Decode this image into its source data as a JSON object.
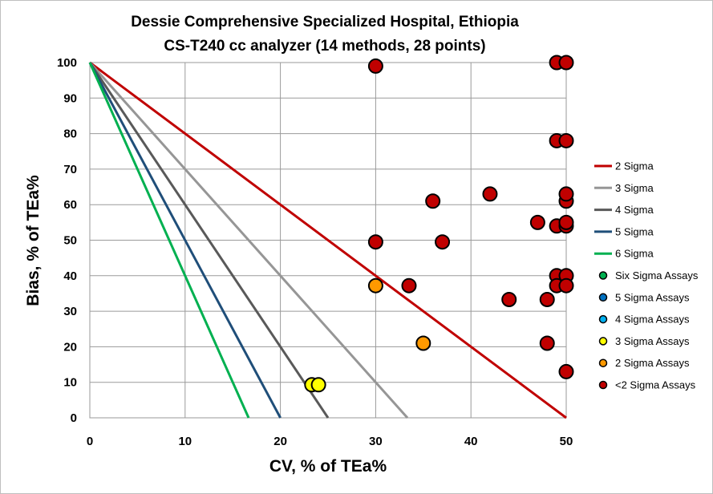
{
  "chart_data": {
    "type": "scatter",
    "title": [
      "Dessie Comprehensive Specialized Hospital, Ethiopia",
      "CS-T240 cc analyzer (14 methods, 28 points)"
    ],
    "xlabel": "CV, % of TEa%",
    "ylabel": "Bias, % of TEa%",
    "xlim": [
      0,
      50
    ],
    "ylim": [
      0,
      100
    ],
    "x_ticks": [
      "0",
      "10",
      "20",
      "30",
      "40",
      "50"
    ],
    "y_ticks": [
      "0",
      "10",
      "20",
      "30",
      "40",
      "50",
      "60",
      "70",
      "80",
      "90",
      "100"
    ],
    "grid": true,
    "legend_position": "right",
    "sigma_lines": [
      {
        "name": "2 Sigma",
        "sigma": 2,
        "color": "#c00000"
      },
      {
        "name": "3 Sigma",
        "sigma": 3,
        "color": "#969696"
      },
      {
        "name": "4 Sigma",
        "sigma": 4,
        "color": "#595959"
      },
      {
        "name": "5 Sigma",
        "sigma": 5,
        "color": "#1f4e79"
      },
      {
        "name": "6 Sigma",
        "sigma": 6,
        "color": "#00b050"
      }
    ],
    "series": [
      {
        "name": "Six Sigma Assays",
        "color": "#00b050",
        "points": []
      },
      {
        "name": "5 Sigma Assays",
        "color": "#0070c0",
        "points": []
      },
      {
        "name": "4 Sigma Assays",
        "color": "#00b0f0",
        "points": []
      },
      {
        "name": "3 Sigma Assays",
        "color": "#ffff00",
        "points": [
          [
            23.3,
            9.3
          ],
          [
            24.0,
            9.3
          ]
        ]
      },
      {
        "name": "2 Sigma Assays",
        "color": "#ff9900",
        "points": [
          [
            30.0,
            37.2
          ],
          [
            35.0,
            21.0
          ]
        ]
      },
      {
        "name": "<2 Sigma Assays",
        "color": "#c00000",
        "points": [
          [
            30.0,
            99.0
          ],
          [
            49.0,
            100.0
          ],
          [
            50.0,
            100.0
          ],
          [
            49.0,
            78.0
          ],
          [
            50.0,
            78.0
          ],
          [
            42.0,
            63.0
          ],
          [
            36.0,
            61.0
          ],
          [
            50.0,
            61.0
          ],
          [
            50.0,
            63.0
          ],
          [
            47.0,
            55.0
          ],
          [
            49.0,
            54.0
          ],
          [
            50.0,
            54.0
          ],
          [
            50.0,
            55.0
          ],
          [
            30.0,
            49.5
          ],
          [
            37.0,
            49.5
          ],
          [
            49.0,
            40.0
          ],
          [
            50.0,
            40.0
          ],
          [
            33.5,
            37.2
          ],
          [
            49.0,
            37.2
          ],
          [
            50.0,
            37.2
          ],
          [
            44.0,
            33.3
          ],
          [
            48.0,
            33.3
          ],
          [
            48.0,
            21.0
          ],
          [
            50.0,
            13.0
          ]
        ]
      }
    ]
  }
}
